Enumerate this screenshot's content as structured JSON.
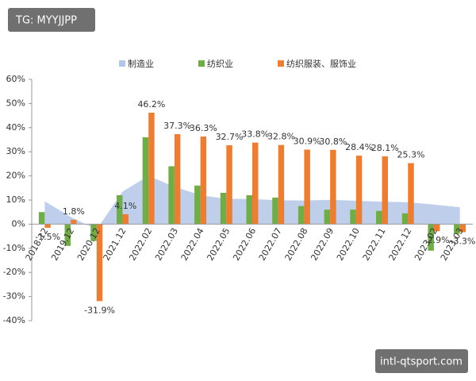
{
  "chart_data": {
    "type": "bar",
    "categories": [
      "2018.12",
      "2019.12",
      "2020.12",
      "2021.12",
      "2022.02",
      "2022.03",
      "2022.04",
      "2022.05",
      "2022.06",
      "2022.07",
      "2022.08",
      "2022.09",
      "2022.10",
      "2022.11",
      "2022.12",
      "2023.02",
      "2023.03"
    ],
    "series": [
      {
        "name": "制造业",
        "type": "area",
        "color": "#b4c7e7",
        "values": [
          9.5,
          3,
          -2.2,
          13.5,
          20,
          15.5,
          12,
          10.5,
          10.4,
          9.9,
          9.8,
          10.1,
          9.7,
          9.3,
          9.1,
          8.1,
          7
        ]
      },
      {
        "name": "纺织业",
        "type": "bar",
        "color": "#70ad47",
        "values": [
          5,
          -9,
          -7,
          12,
          36,
          24,
          16,
          13,
          12,
          11,
          7.5,
          6,
          6,
          5.5,
          4.5,
          -11,
          -4
        ]
      },
      {
        "name": "纺织服装、服饰业",
        "type": "bar",
        "color": "#ed7d31",
        "values": [
          -1.5,
          1.8,
          -31.9,
          4.1,
          46.2,
          37.3,
          36.3,
          32.7,
          33.8,
          32.8,
          30.9,
          30.8,
          28.4,
          28.1,
          25.3,
          -2.9,
          -3.3
        ],
        "value_labels": [
          "-1.5%",
          "1.8%",
          "-31.9%",
          "4.1%",
          "46.2%",
          "37.3%",
          "36.3%",
          "32.7%",
          "33.8%",
          "32.8%",
          "30.9%",
          "30.8%",
          "28.4%",
          "28.1%",
          "25.3%",
          "-2.9%",
          "-3.3%"
        ]
      }
    ],
    "ylim": [
      -40,
      60
    ],
    "yticks": [
      {
        "value": -40,
        "label": "-40%"
      },
      {
        "value": -30,
        "label": "-30%"
      },
      {
        "value": -20,
        "label": "-20%"
      },
      {
        "value": -10,
        "label": "-10%"
      },
      {
        "value": 0,
        "label": "0%"
      },
      {
        "value": 10,
        "label": "10%"
      },
      {
        "value": 20,
        "label": "20%"
      },
      {
        "value": 30,
        "label": "30%"
      },
      {
        "value": 40,
        "label": "40%"
      },
      {
        "value": 50,
        "label": "50%"
      },
      {
        "value": 60,
        "label": "60%"
      }
    ],
    "legend": "top"
  },
  "watermarks": [
    "TG: MYYJJPP",
    "intl-qtsport.com"
  ]
}
